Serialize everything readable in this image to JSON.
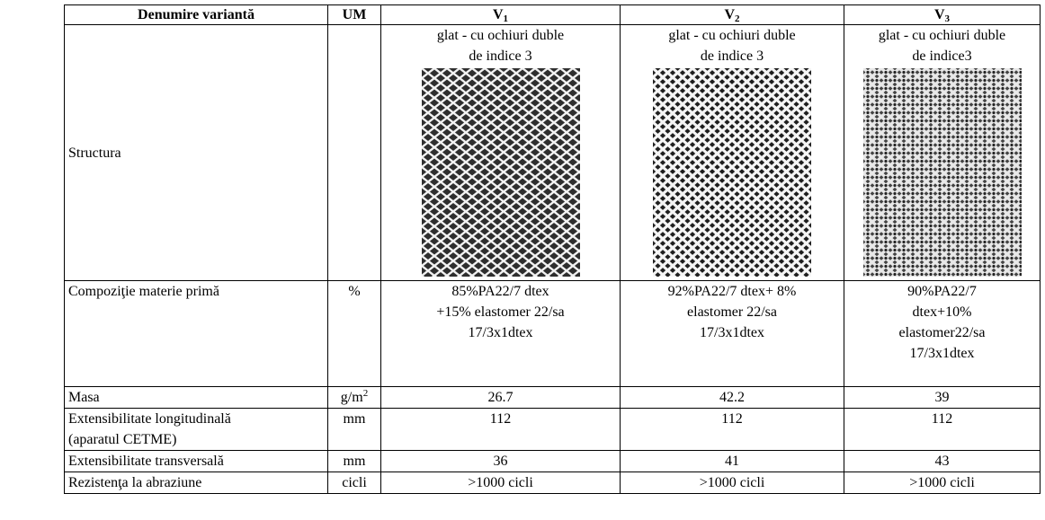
{
  "table": {
    "header": [
      "Denumire variantă",
      "UM",
      {
        "main": "V",
        "sub": "1"
      },
      {
        "main": "V",
        "sub": "2"
      },
      {
        "main": "V",
        "sub": "3"
      }
    ],
    "rows": [
      {
        "label": [
          "Structura"
        ],
        "um": "",
        "cells": [
          [
            "glat - cu ochiuri duble",
            "de indice 3"
          ],
          [
            "glat - cu ochiuri duble",
            "de indice 3"
          ],
          [
            "glat - cu ochiuri duble",
            "de indice3"
          ]
        ]
      },
      {
        "label": [
          "Compoziţie materie primă"
        ],
        "um": "%",
        "cells": [
          [
            "85%PA22/7 dtex",
            "+15% elastomer 22/sa",
            "17/3x1dtex"
          ],
          [
            "92%PA22/7 dtex+ 8%",
            "elastomer 22/sa",
            "17/3x1dtex"
          ],
          [
            "90%PA22/7",
            "dtex+10%",
            "elastomer22/sa",
            "17/3x1dtex"
          ]
        ]
      },
      {
        "label": [
          "Masa"
        ],
        "um": {
          "main": "g/m",
          "sup": "2"
        },
        "cells": [
          [
            "26.7"
          ],
          [
            "42.2"
          ],
          [
            "39"
          ]
        ]
      },
      {
        "label": [
          "Extensibilitate longitudinală",
          "(aparatul CETME)"
        ],
        "um": "mm",
        "cells": [
          [
            "112"
          ],
          [
            "112"
          ],
          [
            "112"
          ]
        ]
      },
      {
        "label": [
          "Extensibilitate transversală"
        ],
        "um": "mm",
        "cells": [
          [
            "36"
          ],
          [
            "41"
          ],
          [
            "43"
          ]
        ]
      },
      {
        "label": [
          "Rezistenţa la abraziune"
        ],
        "um": "cicli",
        "cells": [
          [
            ">1000 cicli"
          ],
          [
            ">1000 cicli"
          ],
          [
            ">1000 cicli"
          ]
        ]
      }
    ]
  }
}
